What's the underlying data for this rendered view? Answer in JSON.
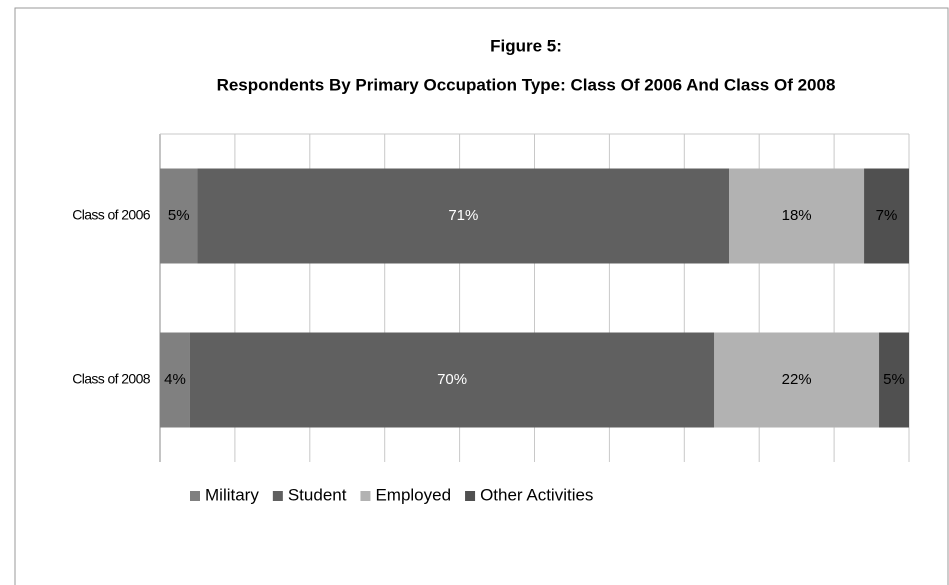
{
  "chart_data": {
    "type": "stacked-barh",
    "title": "Figure 5:",
    "subtitle": "Respondents By Primary Occupation Type: Class Of 2006 And Class Of 2008",
    "categories": [
      "Class of 2006",
      "Class of 2008"
    ],
    "series": [
      {
        "name": "Military",
        "color": "#808080",
        "values": [
          5,
          4
        ],
        "value_labels": [
          "5%",
          "4%"
        ]
      },
      {
        "name": "Student",
        "color": "#606060",
        "values": [
          71,
          70
        ],
        "value_labels": [
          "71%",
          "70%"
        ]
      },
      {
        "name": "Employed",
        "color": "#b2b2b2",
        "values": [
          18,
          22
        ],
        "value_labels": [
          "18%",
          "22%"
        ]
      },
      {
        "name": "Other Activities",
        "color": "#505050",
        "values": [
          7,
          5
        ],
        "value_labels": [
          "7%",
          "5%"
        ]
      }
    ],
    "xlim": [
      0,
      100
    ],
    "xticks": [
      0,
      10,
      20,
      30,
      40,
      50,
      60,
      70,
      80,
      90,
      100
    ],
    "grid": true,
    "legend": "bottom"
  }
}
